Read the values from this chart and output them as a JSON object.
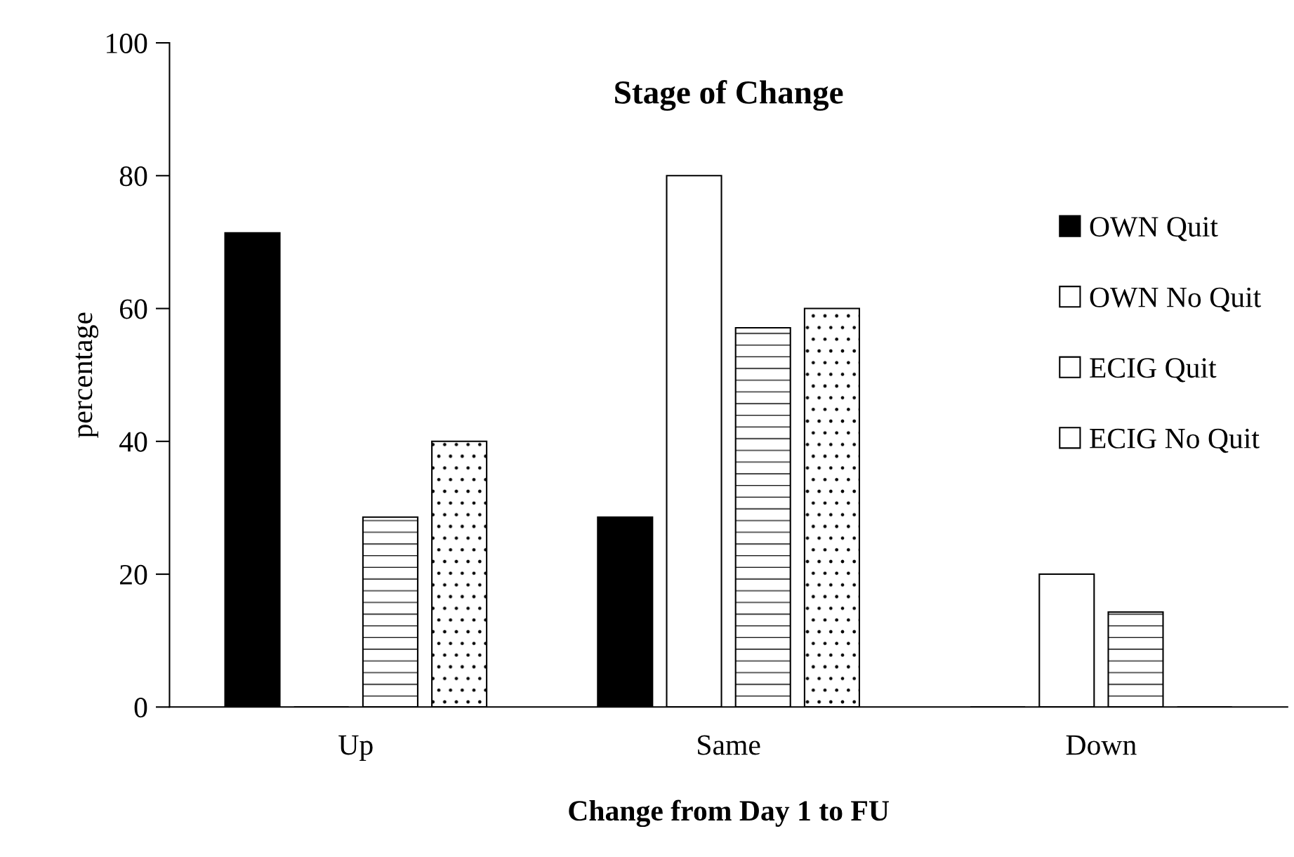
{
  "chart_data": {
    "type": "bar",
    "title": "Stage of Change",
    "xlabel": "Change from Day 1 to FU",
    "ylabel": "percentage",
    "categories": [
      "Up",
      "Same",
      "Down"
    ],
    "series": [
      {
        "name": "OWN Quit",
        "color": "#000000",
        "values": [
          71.4,
          28.6,
          0
        ]
      },
      {
        "name": "OWN No Quit",
        "color": "#ffffff",
        "values": [
          0,
          80,
          20
        ]
      },
      {
        "name": "ECIG Quit",
        "color": "#ffffff",
        "values": [
          28.6,
          57.1,
          14.3
        ]
      },
      {
        "name": "ECIG No Quit",
        "color": "#ffffff",
        "values": [
          40,
          60,
          0
        ]
      }
    ],
    "ylim": [
      0,
      100
    ],
    "yticks": [
      0,
      20,
      40,
      60,
      80,
      100
    ],
    "grid": false,
    "legend": "right"
  }
}
